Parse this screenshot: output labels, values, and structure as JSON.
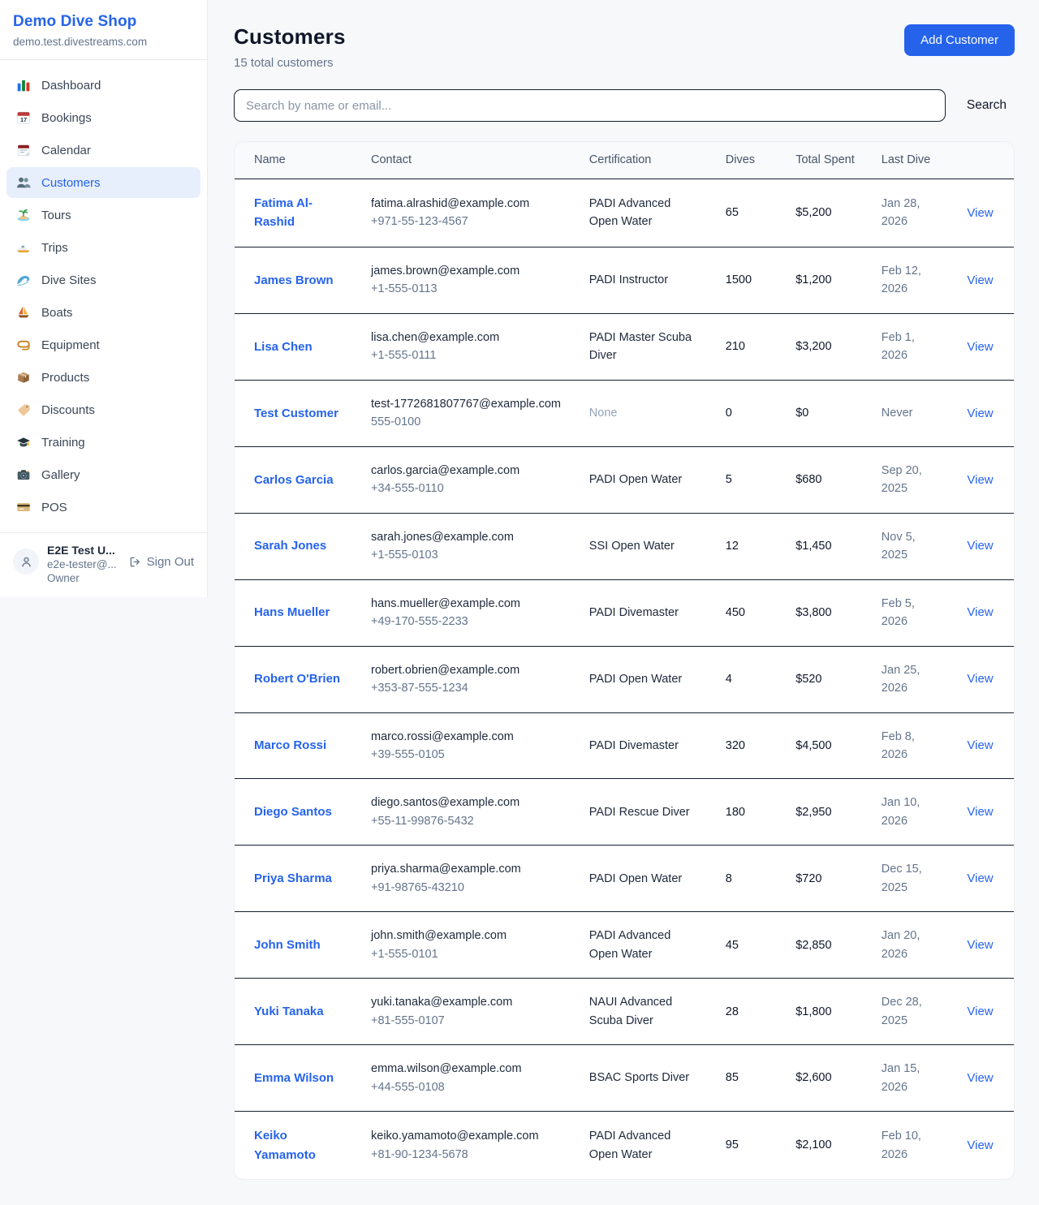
{
  "sidebar": {
    "brand": "Demo Dive Shop",
    "domain": "demo.test.divestreams.com",
    "items": [
      {
        "label": "Dashboard",
        "icon": "bar-chart",
        "active": false
      },
      {
        "label": "Bookings",
        "icon": "calendar-17",
        "active": false
      },
      {
        "label": "Calendar",
        "icon": "calendar-pad",
        "active": false
      },
      {
        "label": "Customers",
        "icon": "people",
        "active": true
      },
      {
        "label": "Tours",
        "icon": "island",
        "active": false
      },
      {
        "label": "Trips",
        "icon": "speedboat",
        "active": false
      },
      {
        "label": "Dive Sites",
        "icon": "wave",
        "active": false
      },
      {
        "label": "Boats",
        "icon": "sailboat",
        "active": false
      },
      {
        "label": "Equipment",
        "icon": "dive-mask",
        "active": false
      },
      {
        "label": "Products",
        "icon": "box",
        "active": false
      },
      {
        "label": "Discounts",
        "icon": "tag",
        "active": false
      },
      {
        "label": "Training",
        "icon": "grad-cap",
        "active": false
      },
      {
        "label": "Gallery",
        "icon": "camera",
        "active": false
      },
      {
        "label": "POS",
        "icon": "credit-card",
        "active": false
      }
    ],
    "user": {
      "name": "E2E Test U...",
      "email": "e2e-tester@...",
      "role": "Owner",
      "sign_out_label": "Sign Out"
    }
  },
  "header": {
    "title": "Customers",
    "subtitle": "15 total customers",
    "add_button": "Add Customer"
  },
  "search": {
    "placeholder": "Search by name or email...",
    "button_label": "Search"
  },
  "table": {
    "columns": [
      "Name",
      "Contact",
      "Certification",
      "Dives",
      "Total Spent",
      "Last Dive",
      ""
    ],
    "view_label": "View",
    "customers": [
      {
        "name": "Fatima Al-Rashid",
        "email": "fatima.alrashid@example.com",
        "phone": "+971-55-123-4567",
        "certification": "PADI Advanced Open Water",
        "dives": "65",
        "total_spent": "$5,200",
        "last_dive": "Jan 28, 2026"
      },
      {
        "name": "James Brown",
        "email": "james.brown@example.com",
        "phone": "+1-555-0113",
        "certification": "PADI Instructor",
        "dives": "1500",
        "total_spent": "$1,200",
        "last_dive": "Feb 12, 2026"
      },
      {
        "name": "Lisa Chen",
        "email": "lisa.chen@example.com",
        "phone": "+1-555-0111",
        "certification": "PADI Master Scuba Diver",
        "dives": "210",
        "total_spent": "$3,200",
        "last_dive": "Feb 1, 2026"
      },
      {
        "name": "Test Customer",
        "email": "test-1772681807767@example.com",
        "phone": "555-0100",
        "certification": "None",
        "dives": "0",
        "total_spent": "$0",
        "last_dive": "Never"
      },
      {
        "name": "Carlos Garcia",
        "email": "carlos.garcia@example.com",
        "phone": "+34-555-0110",
        "certification": "PADI Open Water",
        "dives": "5",
        "total_spent": "$680",
        "last_dive": "Sep 20, 2025"
      },
      {
        "name": "Sarah Jones",
        "email": "sarah.jones@example.com",
        "phone": "+1-555-0103",
        "certification": "SSI Open Water",
        "dives": "12",
        "total_spent": "$1,450",
        "last_dive": "Nov 5, 2025"
      },
      {
        "name": "Hans Mueller",
        "email": "hans.mueller@example.com",
        "phone": "+49-170-555-2233",
        "certification": "PADI Divemaster",
        "dives": "450",
        "total_spent": "$3,800",
        "last_dive": "Feb 5, 2026"
      },
      {
        "name": "Robert O'Brien",
        "email": "robert.obrien@example.com",
        "phone": "+353-87-555-1234",
        "certification": "PADI Open Water",
        "dives": "4",
        "total_spent": "$520",
        "last_dive": "Jan 25, 2026"
      },
      {
        "name": "Marco Rossi",
        "email": "marco.rossi@example.com",
        "phone": "+39-555-0105",
        "certification": "PADI Divemaster",
        "dives": "320",
        "total_spent": "$4,500",
        "last_dive": "Feb 8, 2026"
      },
      {
        "name": "Diego Santos",
        "email": "diego.santos@example.com",
        "phone": "+55-11-99876-5432",
        "certification": "PADI Rescue Diver",
        "dives": "180",
        "total_spent": "$2,950",
        "last_dive": "Jan 10, 2026"
      },
      {
        "name": "Priya Sharma",
        "email": "priya.sharma@example.com",
        "phone": "+91-98765-43210",
        "certification": "PADI Open Water",
        "dives": "8",
        "total_spent": "$720",
        "last_dive": "Dec 15, 2025"
      },
      {
        "name": "John Smith",
        "email": "john.smith@example.com",
        "phone": "+1-555-0101",
        "certification": "PADI Advanced Open Water",
        "dives": "45",
        "total_spent": "$2,850",
        "last_dive": "Jan 20, 2026"
      },
      {
        "name": "Yuki Tanaka",
        "email": "yuki.tanaka@example.com",
        "phone": "+81-555-0107",
        "certification": "NAUI Advanced Scuba Diver",
        "dives": "28",
        "total_spent": "$1,800",
        "last_dive": "Dec 28, 2025"
      },
      {
        "name": "Emma Wilson",
        "email": "emma.wilson@example.com",
        "phone": "+44-555-0108",
        "certification": "BSAC Sports Diver",
        "dives": "85",
        "total_spent": "$2,600",
        "last_dive": "Jan 15, 2026"
      },
      {
        "name": "Keiko Yamamoto",
        "email": "keiko.yamamoto@example.com",
        "phone": "+81-90-1234-5678",
        "certification": "PADI Advanced Open Water",
        "dives": "95",
        "total_spent": "$2,100",
        "last_dive": "Feb 10, 2026"
      }
    ]
  },
  "colors": {
    "accent": "#2563eb",
    "active_nav_bg": "#e7eefc",
    "muted": "#94a3b8",
    "page_bg": "#f7f8fa"
  }
}
